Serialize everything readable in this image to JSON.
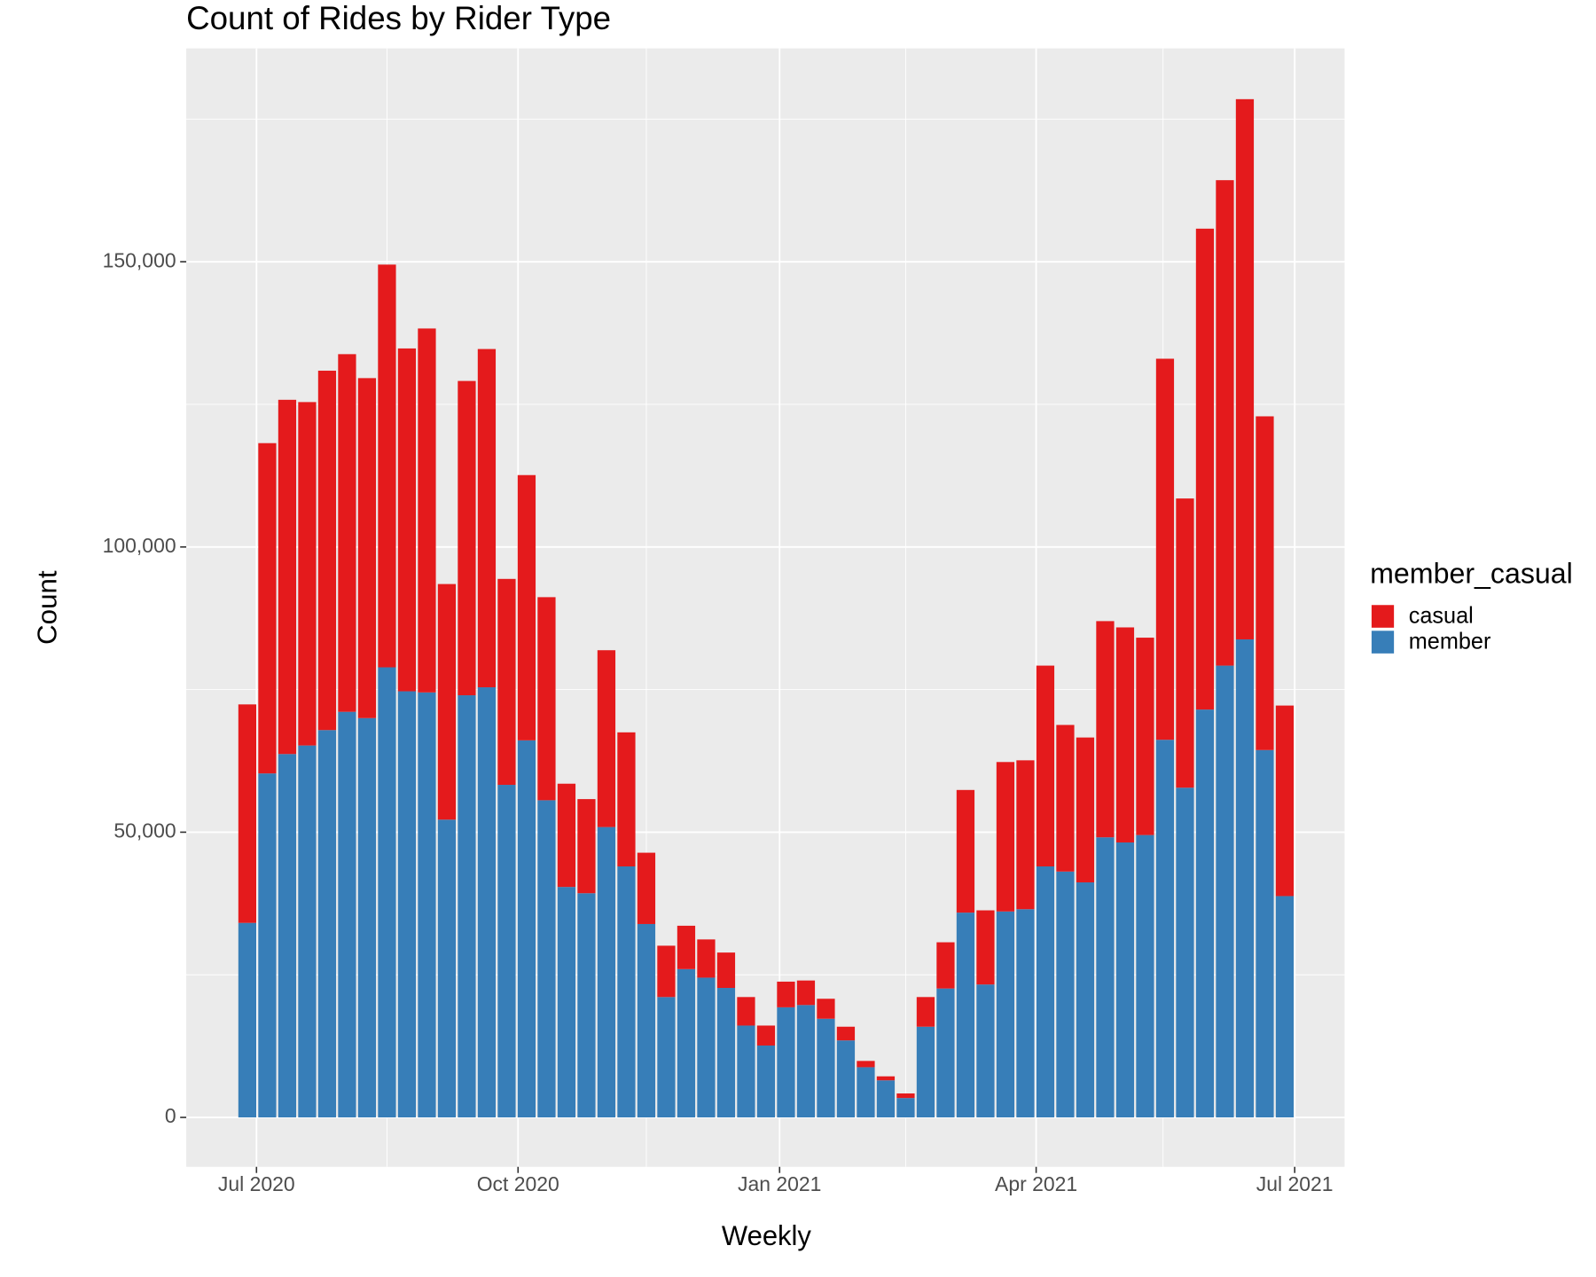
{
  "chart_data": {
    "type": "stacked-bar",
    "title": "Count of Rides by Rider Type",
    "x_label": "Weekly",
    "y_label": "Count",
    "legend_title": "member_casual",
    "legend": "right",
    "categories": [
      null,
      null,
      null,
      null,
      null,
      null,
      null,
      null,
      null,
      null,
      null,
      null,
      null,
      null,
      null,
      null,
      null,
      null,
      null,
      null,
      null,
      null,
      null,
      null,
      null,
      null,
      null,
      null,
      null,
      null,
      null,
      null,
      null,
      null,
      null,
      null,
      null,
      null,
      null,
      null,
      null,
      null,
      null,
      null,
      null,
      null,
      null,
      null,
      null,
      null,
      null,
      null,
      null
    ],
    "series": [
      {
        "name": "casual",
        "color": "#e41a1c",
        "values": [
          38300,
          57900,
          62100,
          60200,
          63000,
          62700,
          59600,
          70600,
          60100,
          63800,
          41300,
          55100,
          59300,
          36100,
          46500,
          35600,
          18100,
          16500,
          31000,
          23500,
          12500,
          9000,
          7600,
          6700,
          6200,
          5000,
          3500,
          4500,
          4300,
          3500,
          2400,
          1100,
          700,
          800,
          5200,
          8100,
          21500,
          13000,
          26200,
          26100,
          35200,
          25700,
          25400,
          37900,
          37700,
          34600,
          66800,
          50700,
          84300,
          85100,
          94700,
          58500,
          33400
        ]
      },
      {
        "name": "member",
        "color": "#377eb8",
        "values": [
          34100,
          60300,
          63700,
          65200,
          67900,
          71100,
          70000,
          78900,
          74700,
          74500,
          52200,
          74000,
          75400,
          58300,
          66100,
          55600,
          40400,
          39300,
          50900,
          44000,
          33900,
          21100,
          26000,
          24500,
          22700,
          16100,
          12600,
          19300,
          19700,
          17300,
          13500,
          8800,
          6500,
          3400,
          15900,
          22600,
          35900,
          23300,
          36100,
          36500,
          44000,
          43100,
          41200,
          49100,
          48200,
          49500,
          66200,
          57800,
          71500,
          79200,
          83800,
          64400,
          38800
        ]
      }
    ],
    "xlim": [
      -3.06,
      55.0
    ],
    "xticks": [
      {
        "value": 0.46,
        "label": "Jul 2020"
      },
      {
        "value": 13.57,
        "label": "Oct 2020"
      },
      {
        "value": 26.68,
        "label": "Jan 2021"
      },
      {
        "value": 39.54,
        "label": "Apr 2021"
      },
      {
        "value": 52.5,
        "label": "Jul 2021"
      }
    ],
    "x_minor_ticks": [
      7.0,
      20.0,
      33.0,
      45.9
    ],
    "ylim": [
      -8660,
      187400
    ],
    "yticks": [
      0,
      {
        "value": 50000,
        "label": "50,000"
      },
      {
        "value": 100000,
        "label": "100,000"
      },
      {
        "value": 150000,
        "label": "150,000"
      }
    ],
    "y_minor_ticks": [
      25000,
      75000,
      125000,
      175000
    ],
    "grid": true
  }
}
